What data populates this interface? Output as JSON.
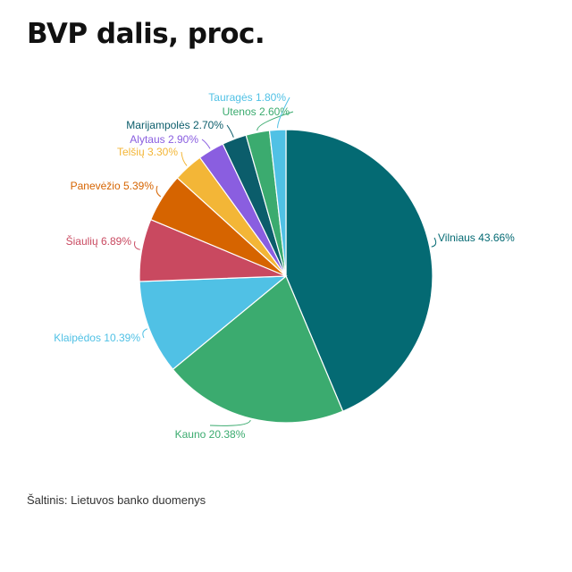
{
  "title": "BVP dalis, proc.",
  "source": "Šaltinis: Lietuvos banko duomenys",
  "chart_data": {
    "type": "pie",
    "title": "BVP dalis, proc.",
    "start_angle_deg": 0,
    "direction": "clockwise",
    "slices": [
      {
        "name": "Vilniaus",
        "value": 43.66,
        "label": "Vilniaus 43.66%",
        "color": "#046a73"
      },
      {
        "name": "Kauno",
        "value": 20.38,
        "label": "Kauno 20.38%",
        "color": "#3bab6f"
      },
      {
        "name": "Klaipėdos",
        "value": 10.39,
        "label": "Klaipėdos 10.39%",
        "color": "#50c1e5"
      },
      {
        "name": "Šiaulių",
        "value": 6.89,
        "label": "Šiaulių 6.89%",
        "color": "#c94960"
      },
      {
        "name": "Panevėžio",
        "value": 5.39,
        "label": "Panevėžio 5.39%",
        "color": "#d66400"
      },
      {
        "name": "Telšių",
        "value": 3.3,
        "label": "Telšių 3.30%",
        "color": "#f3b637"
      },
      {
        "name": "Alytaus",
        "value": 2.9,
        "label": "Alytaus 2.90%",
        "color": "#8a5ee0"
      },
      {
        "name": "Marijampolės",
        "value": 2.7,
        "label": "Marijampolės 2.70%",
        "color": "#0b5d6b"
      },
      {
        "name": "Utenos",
        "value": 2.6,
        "label": "Utenos 2.60%",
        "color": "#3bab6f"
      },
      {
        "name": "Tauragės",
        "value": 1.8,
        "label": "Tauragės 1.80%",
        "color": "#50c1e5"
      }
    ]
  }
}
